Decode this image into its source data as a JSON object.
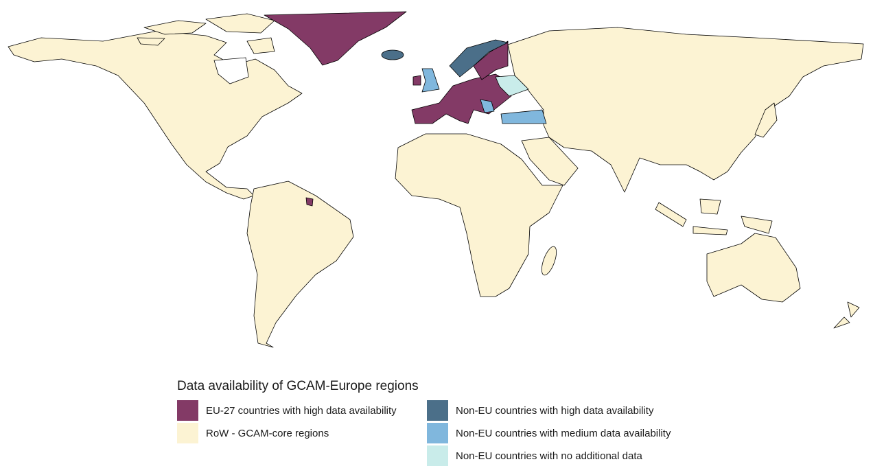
{
  "legend": {
    "title": "Data availability of GCAM-Europe regions",
    "items": [
      {
        "label": "EU-27 countries with high data availability",
        "color": "#833a66"
      },
      {
        "label": "RoW - GCAM-core regions",
        "color": "#fcf3d3"
      },
      {
        "label": "Non-EU countries with high data availability",
        "color": "#4b6f89"
      },
      {
        "label": "Non-EU countries with medium data availability",
        "color": "#80b7dd"
      },
      {
        "label": "Non-EU countries with no additional data",
        "color": "#c9ecea"
      }
    ]
  }
}
